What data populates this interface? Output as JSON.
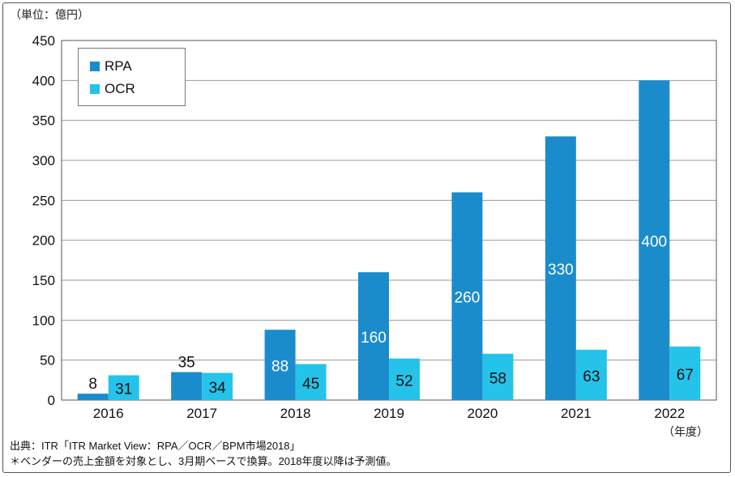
{
  "unit_label": "（単位：億円）",
  "x_unit_label": "（年度）",
  "source_lines": [
    "出典：ITR「ITR Market View：RPA／OCR／BPM市場2018」",
    "＊ベンダーの売上金額を対象とし、3月期ベースで換算。2018年度以降は予測値。"
  ],
  "colors": {
    "rpa": "#1a8ccc",
    "ocr": "#25c3ea",
    "grid": "#999999",
    "axis": "#555555"
  },
  "chart_data": {
    "type": "bar",
    "categories": [
      "2016",
      "2017",
      "2018",
      "2019",
      "2020",
      "2021",
      "2022"
    ],
    "series": [
      {
        "name": "RPA",
        "values": [
          8,
          35,
          88,
          160,
          260,
          330,
          400
        ],
        "data_labels": [
          "8",
          "35",
          "88",
          "160",
          "260",
          "330",
          "400"
        ]
      },
      {
        "name": "OCR",
        "values": [
          31,
          34,
          45,
          52,
          58,
          63,
          67
        ],
        "data_labels": [
          "31",
          "34",
          "45",
          "52",
          "58",
          "63",
          "67"
        ]
      }
    ],
    "ylim": [
      0,
      450
    ],
    "yticks": [
      0,
      50,
      100,
      150,
      200,
      250,
      300,
      350,
      400,
      450
    ],
    "ytick_labels": [
      "0",
      "50",
      "100",
      "150",
      "200",
      "250",
      "300",
      "350",
      "400",
      "450"
    ],
    "grid": true,
    "legend": "top-left"
  }
}
